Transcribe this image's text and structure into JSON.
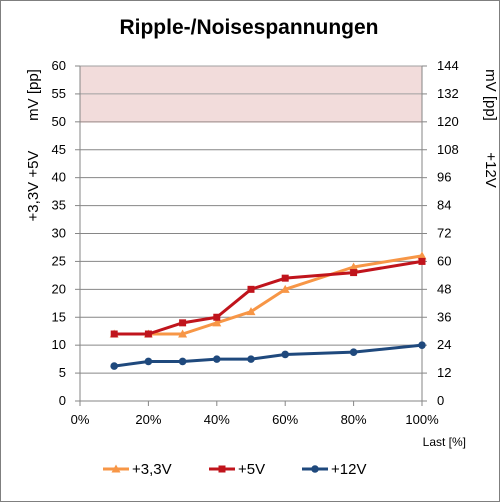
{
  "chart_data": {
    "type": "line",
    "title": "Ripple-/Noisespannungen",
    "xlabel": "Last [%]",
    "ylabel_left": [
      "+3,3V  +5V",
      "mV [pp]"
    ],
    "ylabel_right": [
      "+12V",
      "mV [pp]"
    ],
    "x_ticks": [
      "0%",
      "20%",
      "40%",
      "60%",
      "80%",
      "100%"
    ],
    "y_left_ticks": [
      "0",
      "5",
      "10",
      "15",
      "20",
      "25",
      "30",
      "35",
      "40",
      "45",
      "50",
      "55",
      "60"
    ],
    "y_right_ticks": [
      "0",
      "12",
      "24",
      "36",
      "48",
      "60",
      "72",
      "84",
      "96",
      "108",
      "120",
      "132",
      "144"
    ],
    "xlim": [
      0,
      100
    ],
    "ylim_left": [
      0,
      60
    ],
    "ylim_right": [
      0,
      144
    ],
    "threshold_band_left": [
      50,
      60
    ],
    "grid": true,
    "legend_position": "bottom",
    "series": [
      {
        "name": "+3,3V",
        "axis": "left",
        "color": "#f79646",
        "marker": "triangle",
        "x": [
          10,
          20,
          30,
          40,
          50,
          60,
          80,
          100
        ],
        "values": [
          12,
          12,
          12,
          14,
          16,
          20,
          24,
          26
        ]
      },
      {
        "name": "+5V",
        "axis": "left",
        "color": "#c0141c",
        "marker": "square",
        "x": [
          10,
          20,
          30,
          40,
          50,
          60,
          80,
          100
        ],
        "values": [
          12,
          12,
          14,
          15,
          20,
          22,
          23,
          25
        ]
      },
      {
        "name": "+12V",
        "axis": "right",
        "color": "#1f497d",
        "marker": "circle",
        "x": [
          10,
          20,
          30,
          40,
          50,
          60,
          80,
          100
        ],
        "values": [
          15,
          17,
          17,
          18,
          18,
          20,
          21,
          24
        ]
      }
    ],
    "band_color": "#f2dcdb",
    "band_edge_color": "#c0504d"
  }
}
